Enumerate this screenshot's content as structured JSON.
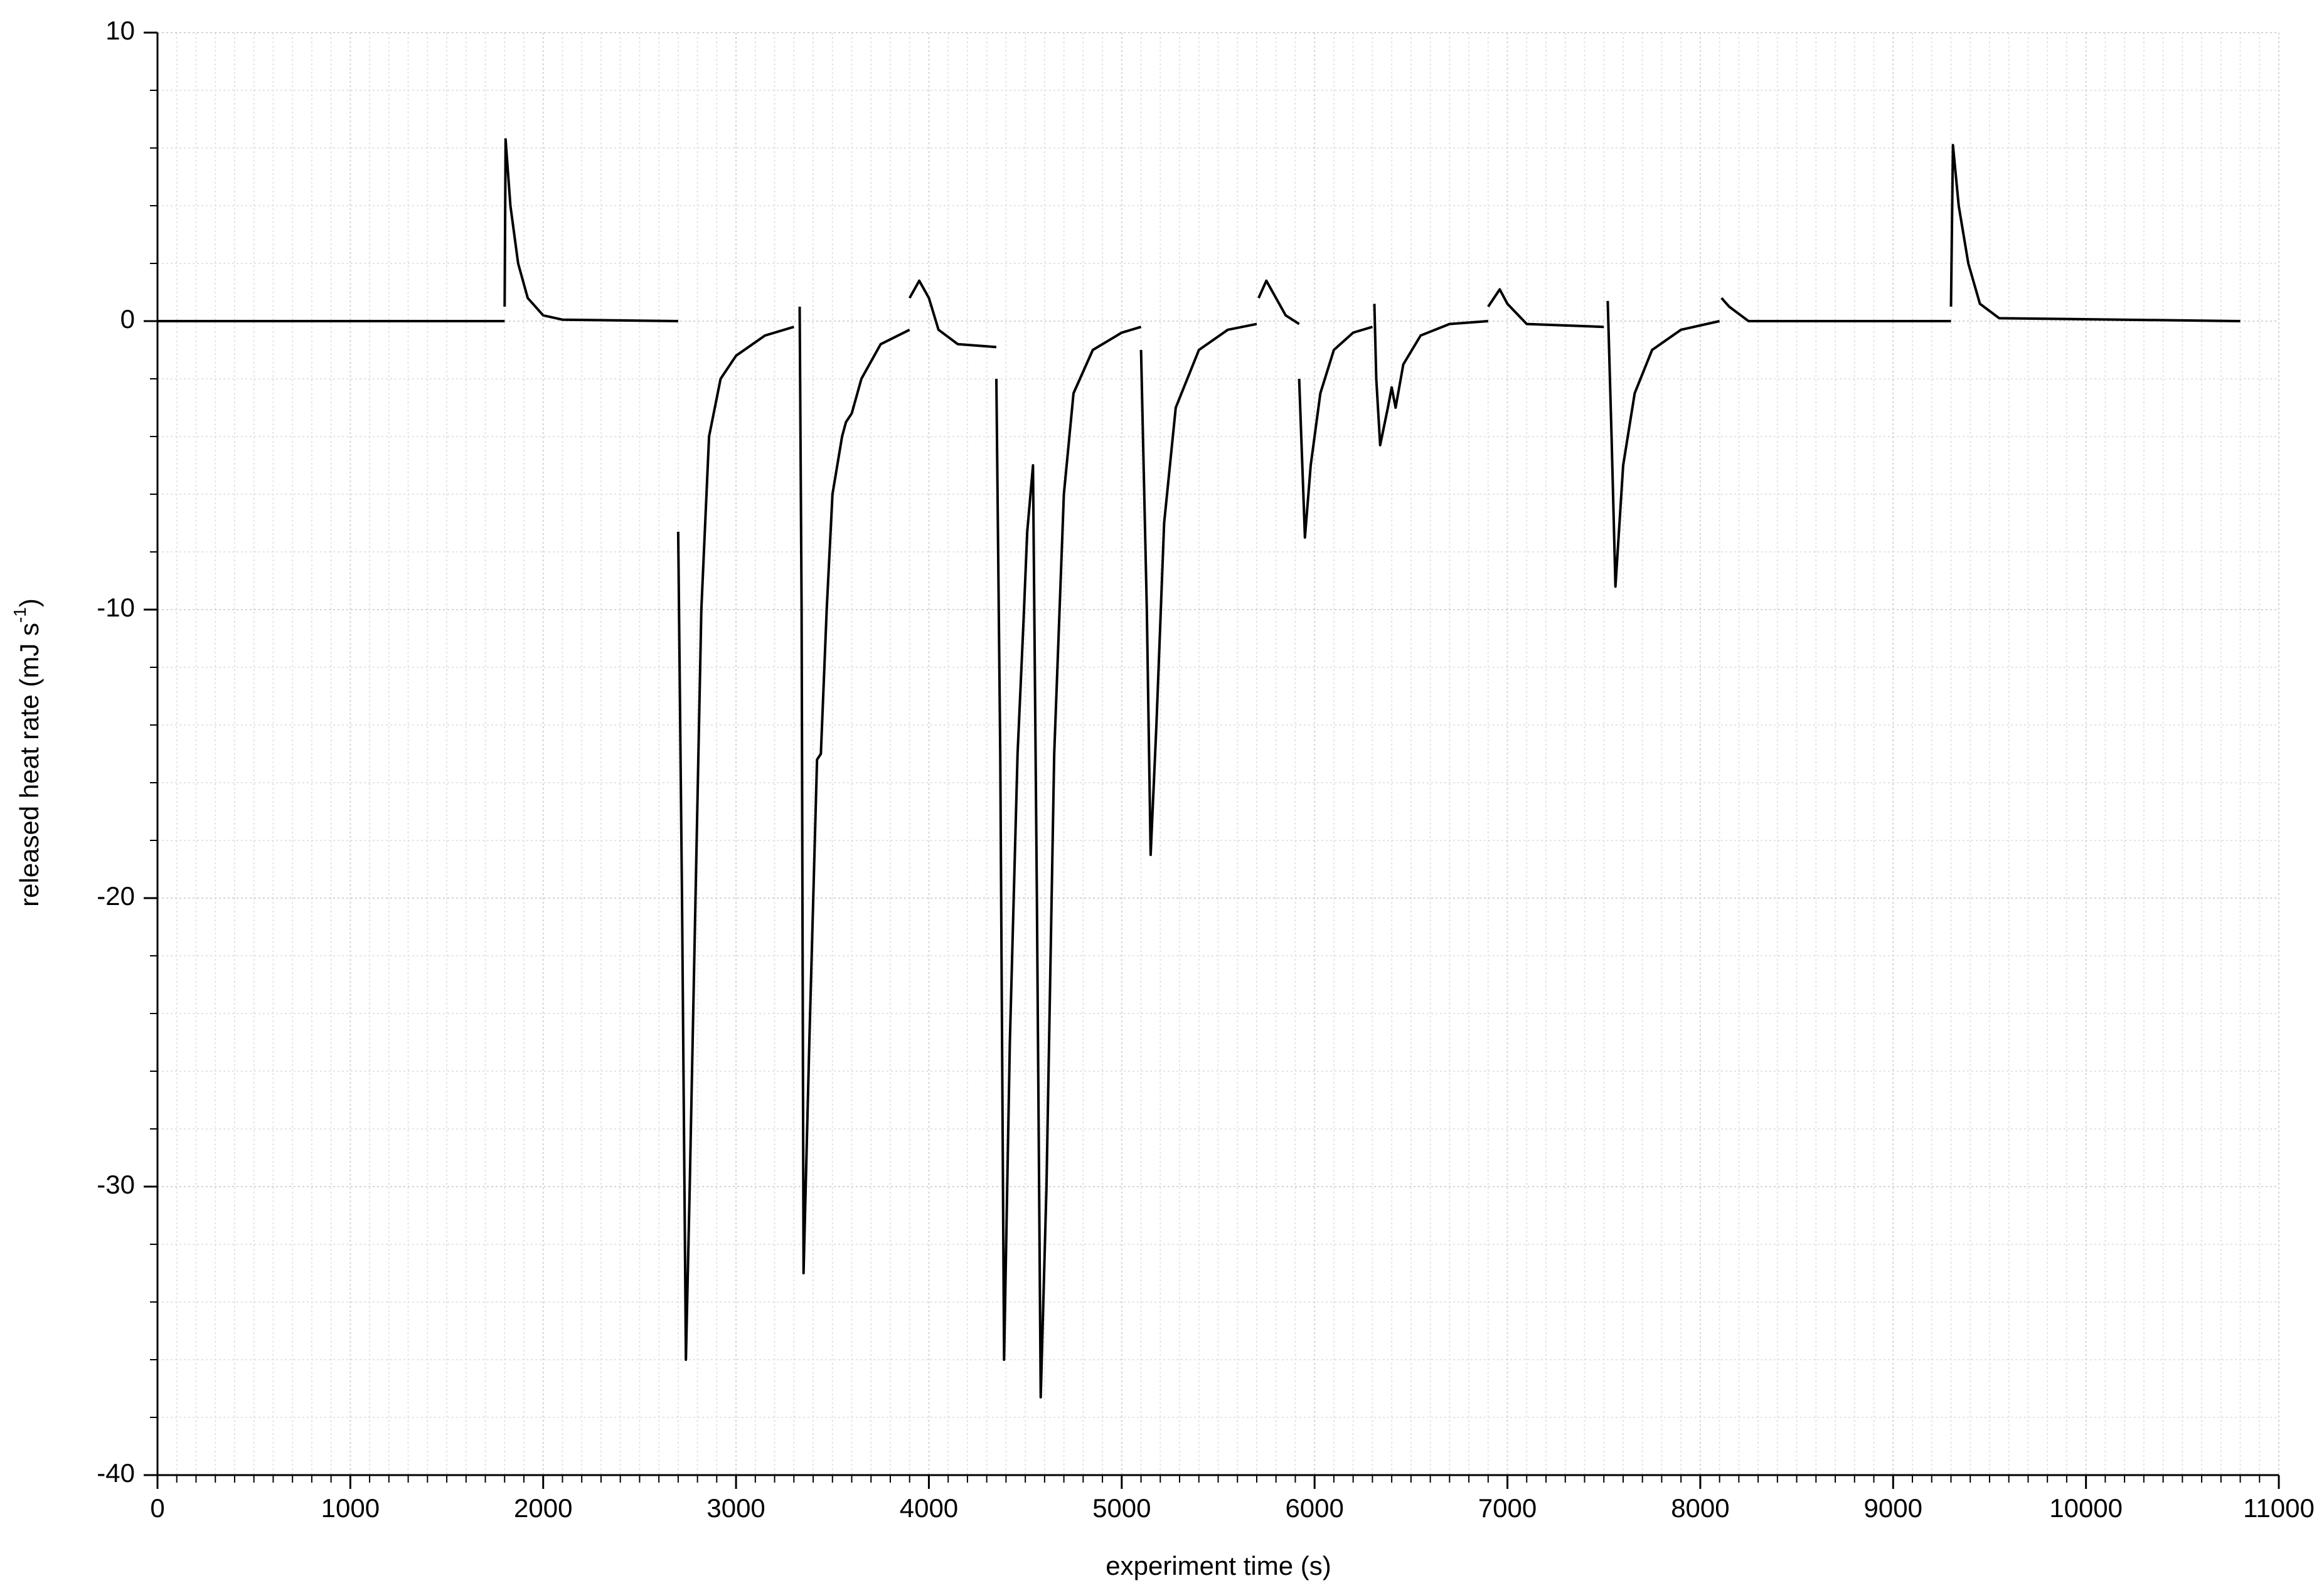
{
  "chart_data": {
    "type": "line",
    "x_label": "experiment time (s)",
    "y_label": {
      "text": "released heat rate (mJ s",
      "sup": "-1",
      "after": ")"
    },
    "xlim": [
      0,
      11000
    ],
    "xticks": [
      0,
      1000,
      2000,
      3000,
      4000,
      5000,
      6000,
      7000,
      8000,
      9000,
      10000,
      11000
    ],
    "ylim": [
      -40,
      10
    ],
    "yticks": [
      -40,
      -30,
      -20,
      -10,
      0,
      10
    ],
    "grid": true,
    "minor_divisions": {
      "x": 10,
      "y": 5
    },
    "series": [
      {
        "name": "heat rate",
        "color": "#000000",
        "x": [
          0,
          1800,
          null,
          1800,
          1805,
          1830,
          1870,
          1920,
          2000,
          2100,
          2700,
          null,
          2700,
          2720,
          2740,
          2760,
          2790,
          2820,
          2860,
          2920,
          3000,
          3150,
          3300,
          null,
          3330,
          3340,
          3350,
          3380,
          3420,
          3440,
          3470,
          3500,
          3550,
          3570,
          3600,
          3650,
          3750,
          3900,
          null,
          3900,
          3950,
          4000,
          4050,
          4150,
          4350,
          null,
          4350,
          4370,
          4390,
          4420,
          4460,
          4490,
          4510,
          4540,
          4560,
          4580,
          4610,
          4650,
          4700,
          4750,
          4850,
          5000,
          5100,
          null,
          5100,
          5130,
          5150,
          5180,
          5220,
          5280,
          5400,
          5550,
          5700,
          null,
          5710,
          5750,
          5800,
          5850,
          5920,
          null,
          5920,
          5950,
          5980,
          6030,
          6100,
          6200,
          6300,
          null,
          6310,
          6320,
          6340,
          6380,
          6400,
          6420,
          6460,
          6550,
          6700,
          6900,
          null,
          6900,
          6960,
          7000,
          7100,
          7500,
          null,
          7520,
          7540,
          7560,
          7600,
          7660,
          7750,
          7900,
          8100,
          null,
          8110,
          8150,
          8250,
          9300,
          null,
          9300,
          9310,
          9340,
          9390,
          9450,
          9550,
          10800
        ],
        "values": [
          0,
          0,
          null,
          0.5,
          6.3,
          4,
          2,
          0.8,
          0.2,
          0.05,
          0,
          null,
          -7.3,
          -20,
          -36,
          -30,
          -20,
          -10,
          -4,
          -2,
          -1.2,
          -0.5,
          -0.2,
          null,
          0.5,
          -10,
          -33,
          -25,
          -15.2,
          -15,
          -10,
          -6,
          -4,
          -3.5,
          -3.2,
          -2,
          -0.8,
          -0.3,
          null,
          0.8,
          1.4,
          0.8,
          -0.3,
          -0.8,
          -0.9,
          null,
          -2,
          -15,
          -36,
          -25,
          -15,
          -10.5,
          -7.3,
          -5,
          -20,
          -37.3,
          -30,
          -15,
          -6,
          -2.5,
          -1,
          -0.4,
          -0.2,
          null,
          -1,
          -10,
          -18.5,
          -14,
          -7,
          -3,
          -1,
          -0.3,
          -0.1,
          null,
          0.8,
          1.4,
          0.8,
          0.2,
          -0.1,
          null,
          -2,
          -7.5,
          -5,
          -2.5,
          -1,
          -0.4,
          -0.2,
          null,
          0.6,
          -2,
          -4.3,
          -3,
          -2.3,
          -3,
          -1.5,
          -0.5,
          -0.1,
          0,
          null,
          0.5,
          1.1,
          0.6,
          -0.1,
          -0.2,
          null,
          0.7,
          -4,
          -9.2,
          -5,
          -2.5,
          -1,
          -0.3,
          0,
          null,
          0.8,
          0.5,
          0,
          0,
          null,
          0.5,
          6.1,
          4,
          2,
          0.6,
          0.1,
          0
        ]
      }
    ]
  }
}
